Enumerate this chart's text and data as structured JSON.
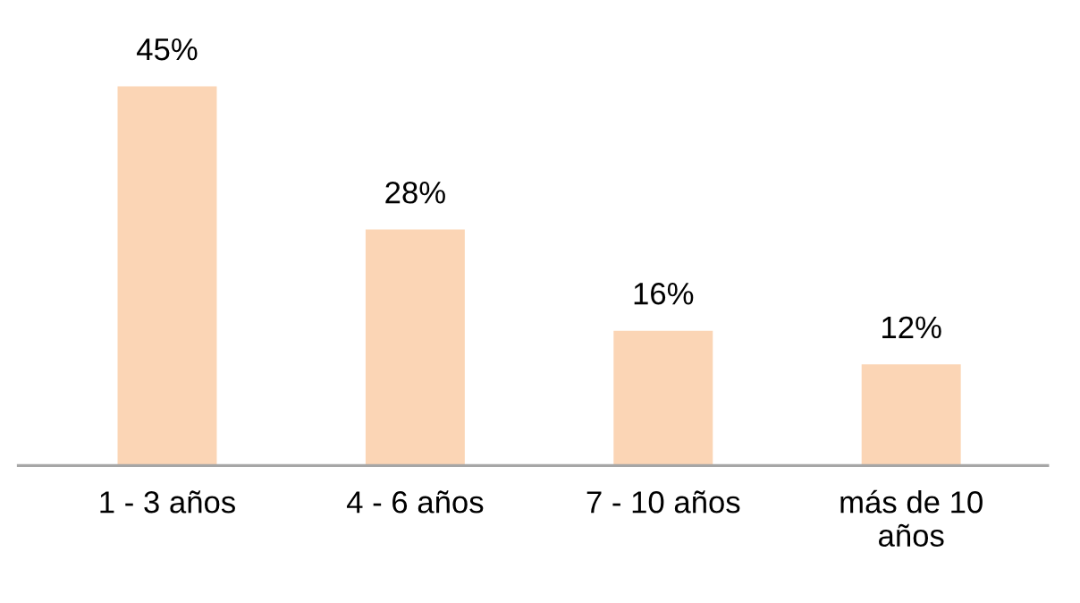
{
  "chart_data": {
    "type": "bar",
    "categories": [
      "1 - 3 años",
      "4 - 6 años",
      "7 - 10 años",
      "más de 10 años"
    ],
    "values": [
      45,
      28,
      16,
      12
    ],
    "value_labels": [
      "45%",
      "28%",
      "16%",
      "12%"
    ],
    "color": "#fbd5b5",
    "tick_labels": "x"
  }
}
